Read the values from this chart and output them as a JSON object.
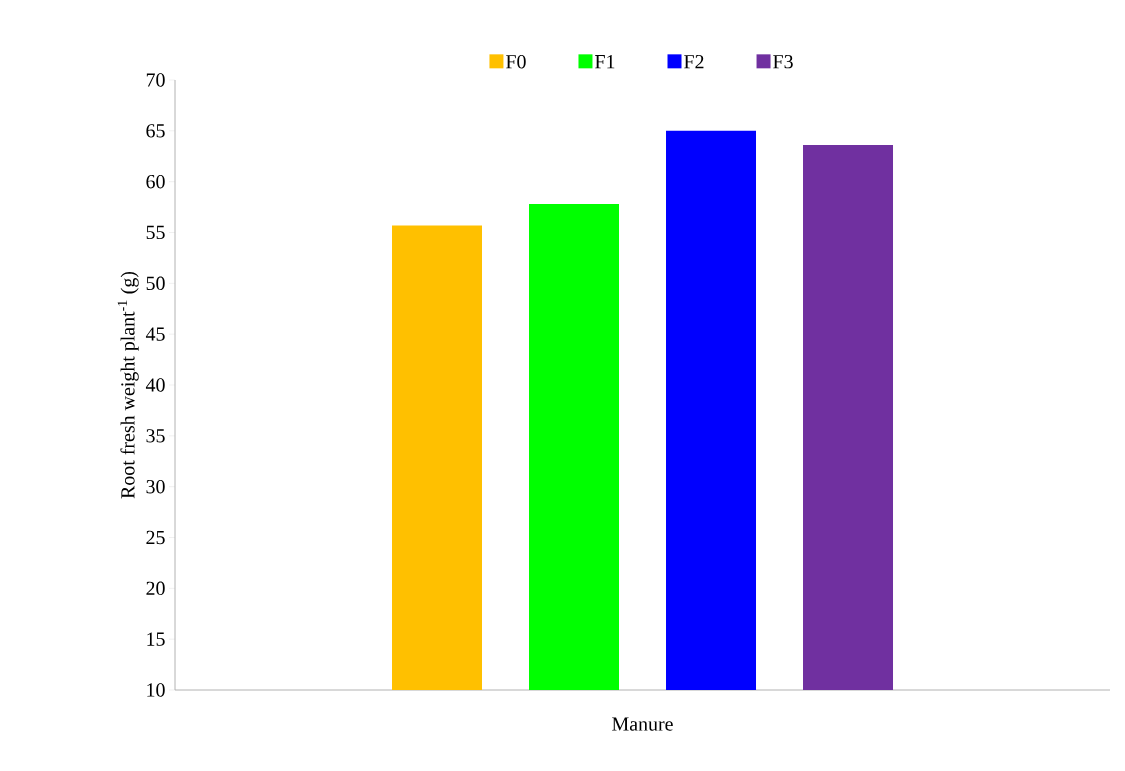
{
  "chart_data": {
    "type": "bar",
    "ylabel": "Root fresh weight plant$^{-1}$ (g)",
    "categories": [
      "Manure"
    ],
    "series": [
      {
        "name": "F0",
        "color": "#ffc000",
        "values": [
          55.7
        ]
      },
      {
        "name": "F1",
        "color": "#00ff00",
        "values": [
          57.8
        ]
      },
      {
        "name": "F2",
        "color": "#0000ff",
        "values": [
          65.0
        ]
      },
      {
        "name": "F3",
        "color": "#7030a0",
        "values": [
          63.6
        ]
      }
    ],
    "ylim": [
      10,
      70
    ],
    "yticks": [
      10,
      15,
      20,
      25,
      30,
      35,
      40,
      45,
      50,
      55,
      60,
      65,
      70
    ],
    "grid": false,
    "legend": "top"
  }
}
